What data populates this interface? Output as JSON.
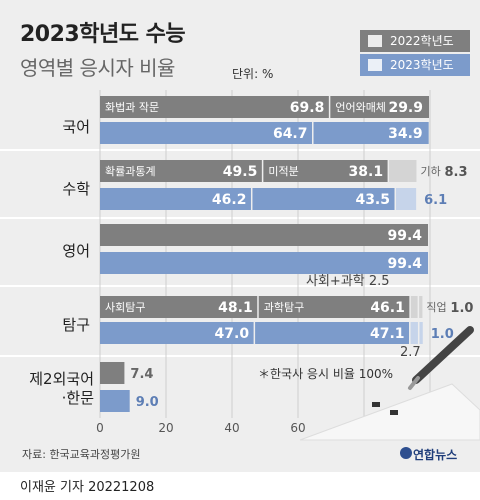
{
  "title": "2023학년도 수능",
  "subtitle": "영역별 응시자 비율",
  "unit": "단위: %",
  "source": "자료: 한국교육과정평가원",
  "logo": "연합뉴스",
  "byline": "이재윤 기자  20221208",
  "colors": {
    "y2022": "#7f7f7f",
    "y2023": "#7c9bcb",
    "y2022_light": "#d4d4d4",
    "y2023_light": "#c6d4ea"
  },
  "chart_data": {
    "type": "bar",
    "orientation": "horizontal",
    "stacked": true,
    "title": "2023학년도 수능",
    "subtitle": "영역별 응시자 비율",
    "unit": "단위: %",
    "legend": [
      "2022학년도",
      "2023학년도"
    ],
    "xlim": [
      0,
      100
    ],
    "xticks": [
      "0",
      "20",
      "40",
      "60",
      "80",
      "100"
    ],
    "note": "＊한국사 응시 비율 100%",
    "categories": [
      {
        "label": "국어",
        "rows": [
          {
            "year": "2022학년도",
            "segments": [
              {
                "name": "화법과 작문",
                "value": 69.8,
                "label": "69.8"
              },
              {
                "name": "언어와매체",
                "value": 29.9,
                "label": "29.9"
              }
            ]
          },
          {
            "year": "2023학년도",
            "segments": [
              {
                "name": "",
                "value": 64.7,
                "label": "64.7"
              },
              {
                "name": "",
                "value": 34.9,
                "label": "34.9"
              }
            ]
          }
        ]
      },
      {
        "label": "수학",
        "rows": [
          {
            "year": "2022학년도",
            "segments": [
              {
                "name": "확률과통계",
                "value": 49.5,
                "label": "49.5"
              },
              {
                "name": "미적분",
                "value": 38.1,
                "label": "38.1"
              },
              {
                "name": "기하",
                "value": 8.3,
                "label": "8.3"
              }
            ]
          },
          {
            "year": "2023학년도",
            "segments": [
              {
                "name": "",
                "value": 46.2,
                "label": "46.2"
              },
              {
                "name": "",
                "value": 43.5,
                "label": "43.5"
              },
              {
                "name": "",
                "value": 6.1,
                "label": "6.1"
              }
            ]
          }
        ]
      },
      {
        "label": "영어",
        "rows": [
          {
            "year": "2022학년도",
            "segments": [
              {
                "name": "",
                "value": 99.4,
                "label": "99.4"
              }
            ]
          },
          {
            "year": "2023학년도",
            "segments": [
              {
                "name": "",
                "value": 99.4,
                "label": "99.4"
              }
            ]
          }
        ]
      },
      {
        "label": "탐구",
        "rows": [
          {
            "year": "2022학년도",
            "segments": [
              {
                "name": "사회탐구",
                "value": 48.1,
                "label": "48.1"
              },
              {
                "name": "과학탐구",
                "value": 46.1,
                "label": "46.1"
              },
              {
                "name": "사회+과학",
                "value": 2.5,
                "label": "2.5"
              },
              {
                "name": "직업",
                "value": 1.0,
                "label": "1.0"
              }
            ]
          },
          {
            "year": "2023학년도",
            "segments": [
              {
                "name": "",
                "value": 47.0,
                "label": "47.0"
              },
              {
                "name": "",
                "value": 47.1,
                "label": "47.1"
              },
              {
                "name": "",
                "value": 2.7,
                "label": "2.7"
              },
              {
                "name": "",
                "value": 1.0,
                "label": "1.0"
              }
            ]
          }
        ]
      },
      {
        "label": "제2외국어·한문",
        "rows": [
          {
            "year": "2022학년도",
            "segments": [
              {
                "name": "",
                "value": 7.4,
                "label": "7.4"
              }
            ]
          },
          {
            "year": "2023학년도",
            "segments": [
              {
                "name": "",
                "value": 9.0,
                "label": "9.0"
              }
            ]
          }
        ]
      }
    ]
  }
}
